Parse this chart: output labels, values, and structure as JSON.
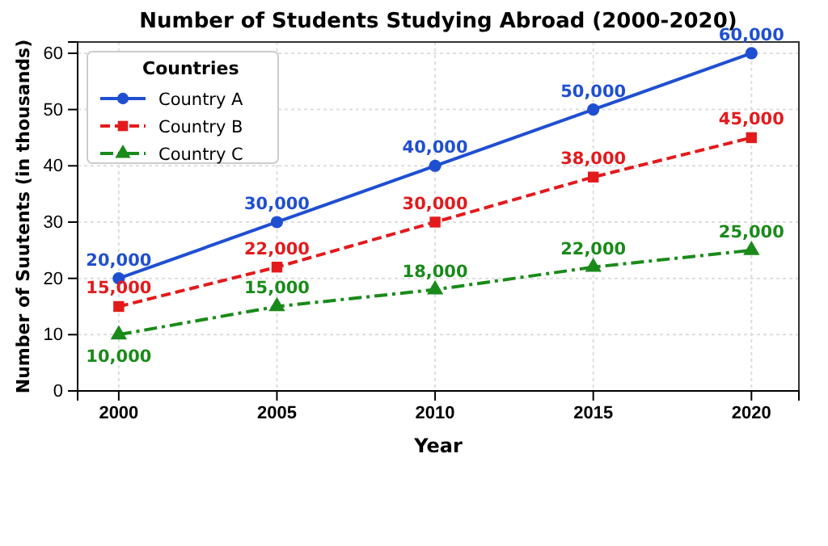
{
  "chart_data": {
    "type": "line",
    "title": "Number of Students Studying Abroad (2000-2020)",
    "xlabel": "Year",
    "ylabel": "Number of Suutents (in thousands)",
    "legend_title": "Countries",
    "legend": "top left",
    "grid": true,
    "x": [
      2000,
      2005,
      2010,
      2015,
      2020
    ],
    "xlim": [
      1998.7,
      2021.5
    ],
    "xticks": [
      2000,
      2005,
      2010,
      2015,
      2020
    ],
    "ylim": [
      0,
      62
    ],
    "yticks": [
      0,
      10,
      20,
      30,
      40,
      50,
      60
    ],
    "series": [
      {
        "name": "Country A",
        "color": "#1f4fd1",
        "marker": "circle",
        "line_style": "solid",
        "values": [
          20,
          30,
          40,
          50,
          60
        ]
      },
      {
        "name": "Country B",
        "color": "#e31a1c",
        "marker": "square",
        "line_style": "dashed",
        "values": [
          15,
          22,
          30,
          38,
          45
        ]
      },
      {
        "name": "Country C",
        "color": "#1a8a1a",
        "marker": "triangle",
        "line_style": "dashdot",
        "values": [
          10,
          15,
          18,
          22,
          25
        ]
      }
    ],
    "annotations": [
      {
        "text": "20,000",
        "x": 2000,
        "y": 20
      },
      {
        "text": "30,000",
        "x": 2005,
        "y": 30
      },
      {
        "text": "40,000",
        "x": 2010,
        "y": 40
      },
      {
        "text": "50,000",
        "x": 2015,
        "y": 50
      },
      {
        "text": "60,000",
        "x": 2020,
        "y": 60
      },
      {
        "text": "15,000",
        "x": 2000,
        "y": 15
      },
      {
        "text": "22,000",
        "x": 2005,
        "y": 22
      },
      {
        "text": "30,000",
        "x": 2010,
        "y": 30
      },
      {
        "text": "38,000",
        "x": 2015,
        "y": 38
      },
      {
        "text": "45,000",
        "x": 2020,
        "y": 45
      },
      {
        "text": "10,000",
        "x": 2000,
        "y": 10
      },
      {
        "text": "15,000",
        "x": 2005,
        "y": 15
      },
      {
        "text": "18,000",
        "x": 2010,
        "y": 18
      },
      {
        "text": "22,000",
        "x": 2015,
        "y": 22
      },
      {
        "text": "25,000",
        "x": 2020,
        "y": 25
      }
    ]
  }
}
